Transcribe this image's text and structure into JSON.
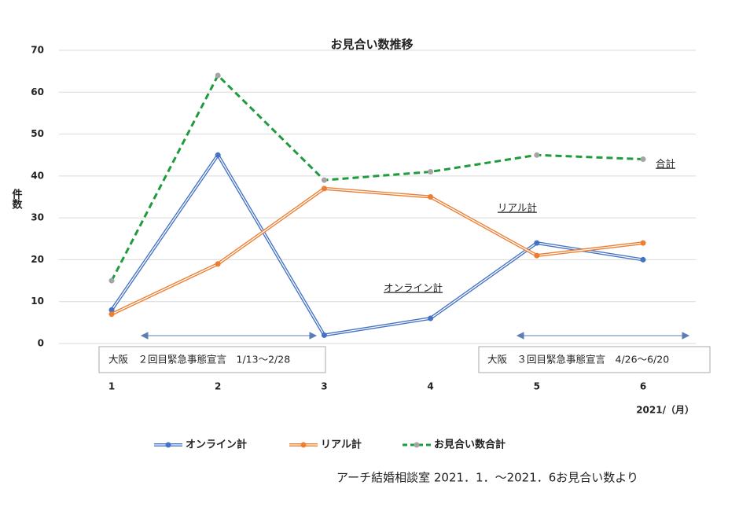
{
  "chart_data": {
    "type": "line",
    "title": "お見合い数推移",
    "y_label": "件数",
    "x_label": "2021/（月）",
    "categories": [
      "1",
      "2",
      "3",
      "4",
      "5",
      "6"
    ],
    "series": [
      {
        "name": "オンライン計",
        "color": "#4472c4",
        "style": "double",
        "values": [
          8,
          45,
          2,
          6,
          24,
          20
        ]
      },
      {
        "name": "リアル計",
        "color": "#ed7d31",
        "style": "double",
        "values": [
          7,
          19,
          37,
          35,
          21,
          24
        ]
      },
      {
        "name": "お見合い数合計",
        "color": "#1e9b3c",
        "marker_color": "#a5a5a5",
        "style": "dashed",
        "values": [
          15,
          64,
          39,
          41,
          45,
          44
        ]
      }
    ],
    "ylim": [
      0,
      70
    ],
    "yticks": [
      0,
      10,
      20,
      30,
      40,
      50,
      60,
      70
    ],
    "grid": true,
    "annotations": [
      "合計",
      "リアル計",
      "オンライン計"
    ],
    "periods": [
      "大阪　２回目緊急事態宣言　1/13～2/28",
      "大阪　３回目緊急事態宣言　4/26～6/20"
    ],
    "source": "アーチ結婚相談室 2021．1．～2021．6お見合い数より"
  }
}
